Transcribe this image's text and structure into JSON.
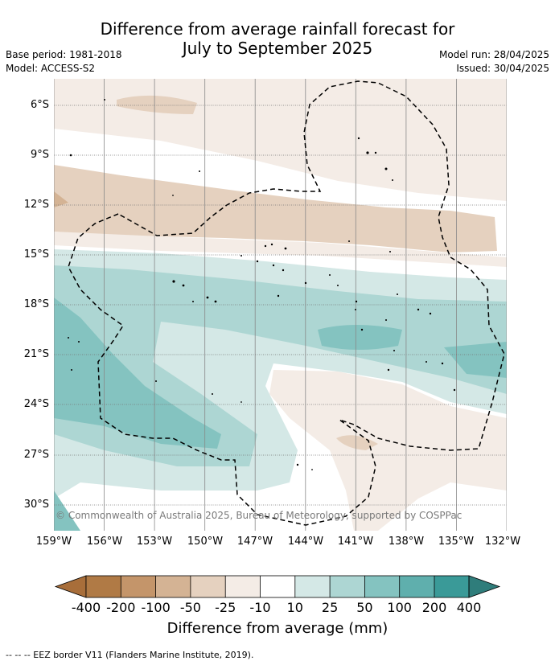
{
  "header": {
    "title_line1": "Difference from average rainfall forecast for",
    "title_line2": "July to September 2025",
    "base_period": "Base period: 1981-2018",
    "model": "Model: ACCESS-S2",
    "model_run": "Model run: 28/04/2025",
    "issued": "Issued: 30/04/2025"
  },
  "map": {
    "lat_labels": [
      "6°S",
      "9°S",
      "12°S",
      "15°S",
      "18°S",
      "21°S",
      "24°S",
      "27°S",
      "30°S"
    ],
    "lon_labels": [
      "159°W",
      "156°W",
      "153°W",
      "150°W",
      "147°W",
      "144°W",
      "141°W",
      "138°W",
      "135°W",
      "132°W"
    ],
    "copyright": "© Commonwealth of Australia 2025, Bureau of Meteorology, supported by COSPPac"
  },
  "colorbar": {
    "labels": [
      "-400",
      "-200",
      "-100",
      "-50",
      "-25",
      "-10",
      "10",
      "25",
      "50",
      "100",
      "200",
      "400"
    ],
    "colors": [
      "#a86e3a",
      "#b07a45",
      "#c4956a",
      "#d4b394",
      "#e5d1bf",
      "#f4ece6",
      "#ffffff",
      "#d4e8e6",
      "#add6d3",
      "#84c3c0",
      "#5fafad",
      "#3a9a98",
      "#2f7d7b"
    ],
    "title": "Difference from average (mm)"
  },
  "legend": {
    "footnote": "--  --  -- EEZ border V11 (Flanders Marine Institute, 2019)."
  }
}
